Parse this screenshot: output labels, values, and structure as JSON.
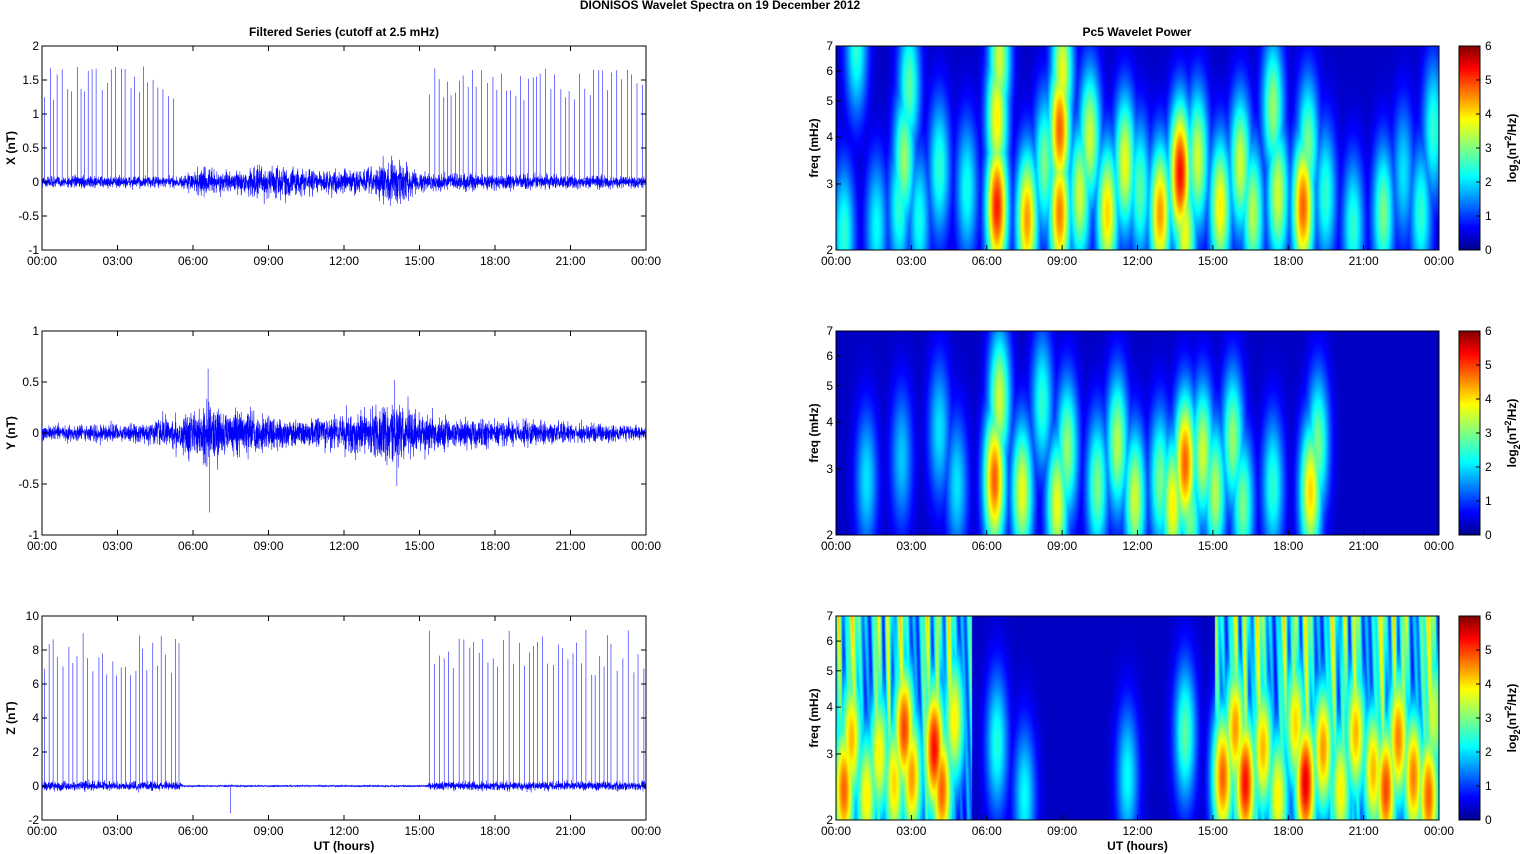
{
  "figure_title": "DIONISOS Wavelet Spectra on 19 December  2012",
  "left_title": "Filtered Series (cutoff at 2.5 mHz)",
  "right_title": "Pc5 Wavelet Power",
  "xlabel": "UT (hours)",
  "colorbar_label": {
    "pre": "log",
    "sub2": "2",
    "mid": "(nT",
    "sup": "2",
    "post": "/Hz)"
  },
  "freq_label": "freq (mHz)",
  "colormap": "jet",
  "colors": {
    "trace": "#0000ff",
    "low": "#00008f",
    "high": "#800000"
  },
  "chart_data": [
    {
      "type": "line",
      "title": "Filtered Series (cutoff at 2.5 mHz)",
      "ylabel": "X (nT)",
      "xlabel": "",
      "xlim": [
        0,
        24
      ],
      "ylim": [
        -1,
        2
      ],
      "xticks": [
        "00:00",
        "03:00",
        "06:00",
        "09:00",
        "12:00",
        "15:00",
        "18:00",
        "21:00",
        "00:00"
      ],
      "yticks": [
        "-1",
        "-0.5",
        "0",
        "0.5",
        "1",
        "1.5",
        "2"
      ],
      "noise_envelope": [
        [
          0,
          0.08
        ],
        [
          5.5,
          0.08
        ],
        [
          6.3,
          0.2
        ],
        [
          7.5,
          0.12
        ],
        [
          9,
          0.25
        ],
        [
          11,
          0.15
        ],
        [
          13,
          0.18
        ],
        [
          14,
          0.35
        ],
        [
          15,
          0.12
        ],
        [
          24,
          0.08
        ]
      ],
      "spikes": [
        {
          "from": 0.1,
          "to": 5.4,
          "min": 1.2,
          "max": 1.7
        },
        {
          "from": 15.4,
          "to": 24,
          "min": 1.2,
          "max": 1.7
        }
      ]
    },
    {
      "type": "line",
      "ylabel": "Y (nT)",
      "xlabel": "",
      "xlim": [
        0,
        24
      ],
      "ylim": [
        -1,
        1
      ],
      "xticks": [
        "00:00",
        "03:00",
        "06:00",
        "09:00",
        "12:00",
        "15:00",
        "18:00",
        "21:00",
        "00:00"
      ],
      "yticks": [
        "-1",
        "-0.5",
        "0",
        "0.5",
        "1"
      ],
      "noise_envelope": [
        [
          0,
          0.07
        ],
        [
          4,
          0.09
        ],
        [
          6.6,
          0.25
        ],
        [
          8,
          0.2
        ],
        [
          10,
          0.12
        ],
        [
          12,
          0.18
        ],
        [
          14,
          0.28
        ],
        [
          16,
          0.14
        ],
        [
          24,
          0.07
        ]
      ],
      "extremes": [
        {
          "x": 6.6,
          "y": 0.63
        },
        {
          "x": 6.65,
          "y": -0.78
        },
        {
          "x": 14.1,
          "y": -0.52
        },
        {
          "x": 14.0,
          "y": 0.52
        }
      ],
      "spikes": []
    },
    {
      "type": "line",
      "ylabel": "Z (nT)",
      "xlabel": "UT (hours)",
      "xlim": [
        0,
        24
      ],
      "ylim": [
        -2,
        10
      ],
      "xticks": [
        "00:00",
        "03:00",
        "06:00",
        "09:00",
        "12:00",
        "15:00",
        "18:00",
        "21:00",
        "00:00"
      ],
      "yticks": [
        "-2",
        "0",
        "2",
        "4",
        "6",
        "8",
        "10"
      ],
      "noise_envelope": [
        [
          0,
          0.25
        ],
        [
          5.5,
          0.25
        ],
        [
          5.6,
          0.05
        ],
        [
          15.3,
          0.05
        ],
        [
          15.4,
          0.25
        ],
        [
          24,
          0.25
        ]
      ],
      "extremes": [
        {
          "x": 7.5,
          "y": -1.6
        }
      ],
      "spikes": [
        {
          "from": 0.1,
          "to": 5.5,
          "min": 6.5,
          "max": 9.2
        },
        {
          "from": 15.4,
          "to": 24,
          "min": 6.5,
          "max": 9.2
        }
      ]
    },
    {
      "type": "heatmap",
      "title": "Pc5 Wavelet Power",
      "ylabel": "freq (mHz)",
      "xlim": [
        0,
        24
      ],
      "ylim": [
        2,
        7
      ],
      "yscale": "log",
      "zlim": [
        0,
        6
      ],
      "xticks": [
        "00:00",
        "03:00",
        "06:00",
        "09:00",
        "12:00",
        "15:00",
        "18:00",
        "21:00",
        "00:00"
      ],
      "yticks": [
        "2",
        "3",
        "4",
        "5",
        "6",
        "7"
      ],
      "cbar_ticks": [
        "0",
        "1",
        "2",
        "3",
        "4",
        "5",
        "6"
      ],
      "blobs": [
        [
          0.3,
          2.2,
          2.5
        ],
        [
          0.8,
          7,
          2.5
        ],
        [
          1.6,
          2.3,
          2.2
        ],
        [
          2.5,
          2.6,
          2.5
        ],
        [
          2.7,
          3.5,
          3.2
        ],
        [
          2.9,
          5.5,
          2.8
        ],
        [
          3.3,
          2.4,
          2.3
        ],
        [
          4.1,
          3.3,
          2.5
        ],
        [
          5.2,
          2.9,
          2.3
        ],
        [
          6.4,
          2.6,
          5.5
        ],
        [
          6.4,
          4.5,
          4
        ],
        [
          6.5,
          6.5,
          3.6
        ],
        [
          7.6,
          2.4,
          4.6
        ],
        [
          8.3,
          3.4,
          3
        ],
        [
          8.9,
          2.5,
          4.8
        ],
        [
          8.9,
          4.2,
          5
        ],
        [
          9,
          6,
          3.8
        ],
        [
          9.7,
          2.8,
          3.6
        ],
        [
          10.1,
          4,
          3.6
        ],
        [
          10.8,
          2.5,
          4.2
        ],
        [
          11.5,
          3.4,
          3.8
        ],
        [
          12.1,
          2.9,
          2.8
        ],
        [
          12.9,
          2.5,
          4.6
        ],
        [
          13.7,
          3.2,
          5.6
        ],
        [
          13.9,
          2.2,
          3.8
        ],
        [
          14.4,
          3.5,
          3.6
        ],
        [
          15.3,
          2.6,
          4
        ],
        [
          16.1,
          3.4,
          3.6
        ],
        [
          16.6,
          2.5,
          3.4
        ],
        [
          17.4,
          4.8,
          3.2
        ],
        [
          17.6,
          2.8,
          3.6
        ],
        [
          18.6,
          2.6,
          5
        ],
        [
          18.8,
          3.8,
          3
        ],
        [
          19.5,
          2.8,
          2.5
        ],
        [
          20.6,
          2.3,
          2.5
        ],
        [
          21.8,
          2.5,
          3
        ],
        [
          22.6,
          3.2,
          2
        ],
        [
          23.3,
          2.5,
          2.5
        ],
        [
          23.8,
          4.2,
          2.5
        ]
      ]
    },
    {
      "type": "heatmap",
      "ylabel": "freq (mHz)",
      "xlim": [
        0,
        24
      ],
      "ylim": [
        2,
        7
      ],
      "yscale": "log",
      "zlim": [
        0,
        6
      ],
      "xticks": [
        "00:00",
        "03:00",
        "06:00",
        "09:00",
        "12:00",
        "15:00",
        "18:00",
        "21:00",
        "00:00"
      ],
      "yticks": [
        "2",
        "3",
        "4",
        "5",
        "6",
        "7"
      ],
      "cbar_ticks": [
        "0",
        "1",
        "2",
        "3",
        "4",
        "5",
        "6"
      ],
      "blobs": [
        [
          1.2,
          2.8,
          2
        ],
        [
          2.6,
          3.2,
          1.8
        ],
        [
          4.1,
          3.8,
          2
        ],
        [
          4.8,
          2.7,
          2
        ],
        [
          6.3,
          2.8,
          5
        ],
        [
          6.5,
          4.6,
          3.6
        ],
        [
          7.4,
          2.6,
          3.8
        ],
        [
          8.2,
          4.5,
          2.5
        ],
        [
          8.8,
          2.4,
          3.8
        ],
        [
          9.2,
          3.4,
          3.2
        ],
        [
          10.4,
          2.7,
          3
        ],
        [
          11.2,
          3.5,
          3.4
        ],
        [
          11.9,
          2.5,
          3.6
        ],
        [
          12.9,
          2.8,
          3
        ],
        [
          13.4,
          2.4,
          4
        ],
        [
          13.9,
          3.1,
          5
        ],
        [
          14.1,
          2.2,
          3
        ],
        [
          14.6,
          3.3,
          3.6
        ],
        [
          15.1,
          2.6,
          3.4
        ],
        [
          15.8,
          3.6,
          3.2
        ],
        [
          16.2,
          2.4,
          3
        ],
        [
          17.4,
          2.7,
          2.5
        ],
        [
          18.9,
          2.6,
          4.2
        ],
        [
          19.2,
          3.5,
          3
        ]
      ]
    },
    {
      "type": "heatmap",
      "ylabel": "freq (mHz)",
      "xlim": [
        0,
        24
      ],
      "ylim": [
        2,
        7
      ],
      "yscale": "log",
      "zlim": [
        0,
        6
      ],
      "xticks": [
        "00:00",
        "03:00",
        "06:00",
        "09:00",
        "12:00",
        "15:00",
        "18:00",
        "21:00",
        "00:00"
      ],
      "yticks": [
        "2",
        "3",
        "4",
        "5",
        "6",
        "7"
      ],
      "cbar_ticks": [
        "0",
        "1",
        "2",
        "3",
        "4",
        "5",
        "6"
      ],
      "active_windows": [
        [
          0,
          5.4
        ],
        [
          15.1,
          24
        ]
      ],
      "blobs": [
        [
          0.3,
          2.4,
          5
        ],
        [
          0.6,
          3.3,
          4.4
        ],
        [
          1.2,
          2.3,
          4
        ],
        [
          1.7,
          3,
          4
        ],
        [
          2.3,
          2.5,
          4.2
        ],
        [
          2.7,
          3.5,
          5.2
        ],
        [
          3,
          2.6,
          4.6
        ],
        [
          3.9,
          3.1,
          5.6
        ],
        [
          4.2,
          2.4,
          5
        ],
        [
          4.7,
          3.7,
          4
        ],
        [
          6.4,
          3.2,
          2.4
        ],
        [
          7.5,
          2.3,
          2.2
        ],
        [
          11.6,
          2.6,
          2.2
        ],
        [
          13.9,
          3.4,
          2.8
        ],
        [
          15.4,
          2.6,
          5
        ],
        [
          15.9,
          3.5,
          4.6
        ],
        [
          16.3,
          2.5,
          5.6
        ],
        [
          17,
          3.1,
          4.4
        ],
        [
          17.6,
          2.3,
          4
        ],
        [
          18.3,
          3.6,
          4.2
        ],
        [
          18.7,
          2.5,
          5.8
        ],
        [
          19.4,
          3.1,
          4.6
        ],
        [
          20.1,
          2.4,
          4
        ],
        [
          20.7,
          3.4,
          4.4
        ],
        [
          21.4,
          2.7,
          4.4
        ],
        [
          21.9,
          2.4,
          5.2
        ],
        [
          22.4,
          3.3,
          4.8
        ],
        [
          23,
          2.6,
          4.8
        ],
        [
          23.6,
          2.3,
          5
        ],
        [
          23.8,
          3.8,
          3.6
        ]
      ]
    }
  ]
}
